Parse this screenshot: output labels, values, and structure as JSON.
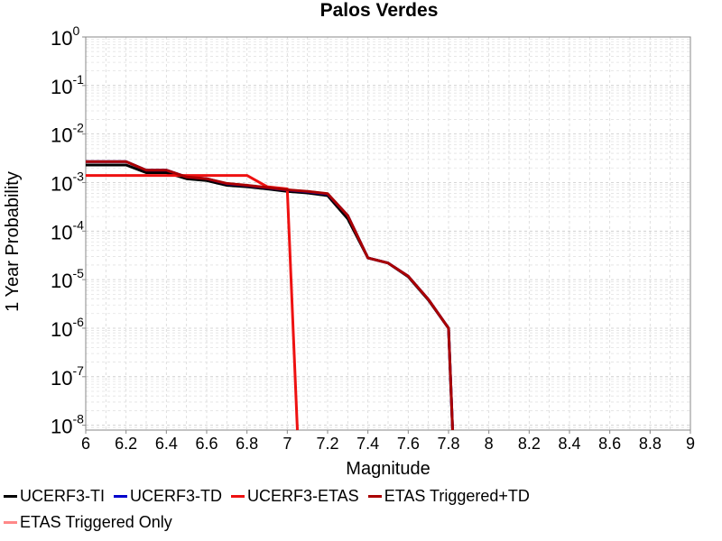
{
  "chart_data": {
    "type": "line",
    "title": "Palos Verdes",
    "xlabel": "Magnitude",
    "ylabel": "1 Year Probability",
    "xlim": [
      6,
      9
    ],
    "ylim_log10": [
      -8.1,
      0
    ],
    "y_scale": "log",
    "grid": true,
    "legend_placement": "bottom",
    "x_ticks": [
      "6",
      "6.2",
      "6.4",
      "6.6",
      "6.8",
      "7",
      "7.2",
      "7.4",
      "7.6",
      "7.8",
      "8",
      "8.2",
      "8.4",
      "8.6",
      "8.8",
      "9"
    ],
    "y_ticks": [
      {
        "base": "10",
        "exp": "0",
        "log": 0
      },
      {
        "base": "10",
        "exp": "-1",
        "log": -1
      },
      {
        "base": "10",
        "exp": "-2",
        "log": -2
      },
      {
        "base": "10",
        "exp": "-3",
        "log": -3
      },
      {
        "base": "10",
        "exp": "-4",
        "log": -4
      },
      {
        "base": "10",
        "exp": "-5",
        "log": -5
      },
      {
        "base": "10",
        "exp": "-6",
        "log": -6
      },
      {
        "base": "10",
        "exp": "-7",
        "log": -7
      },
      {
        "base": "10",
        "exp": "-8",
        "log": -8
      }
    ],
    "series": [
      {
        "name": "UCERF3-TI",
        "color": "#000000",
        "x": [
          6.0,
          6.2,
          6.3,
          6.4,
          6.5,
          6.6,
          6.7,
          6.8,
          6.9,
          7.0,
          7.1,
          7.2,
          7.3,
          7.4,
          7.5,
          7.6,
          7.7,
          7.8,
          7.82
        ],
        "y": [
          0.0023,
          0.0023,
          0.0016,
          0.0016,
          0.0012,
          0.0011,
          0.00088,
          0.00082,
          0.00074,
          0.00066,
          0.00061,
          0.00054,
          0.00018,
          2.8e-05,
          2.2e-05,
          1.15e-05,
          3.8e-06,
          1e-06,
          6e-09
        ]
      },
      {
        "name": "UCERF3-TD",
        "color": "#0000cc",
        "x": [
          6.0,
          6.2,
          6.3,
          6.4,
          6.5,
          6.6,
          6.7,
          6.8,
          6.9,
          7.0,
          7.1,
          7.2,
          7.3,
          7.4,
          7.5,
          7.6,
          7.7,
          7.8,
          7.82
        ],
        "y": [
          0.0027,
          0.0027,
          0.0018,
          0.0018,
          0.0013,
          0.0012,
          0.00095,
          0.00087,
          0.00078,
          0.0007,
          0.00065,
          0.00058,
          0.00021,
          2.8e-05,
          2.2e-05,
          1.18e-05,
          3.9e-06,
          1e-06,
          6e-09
        ]
      },
      {
        "name": "UCERF3-ETAS",
        "color": "#ee1111",
        "x": [
          6.0,
          6.4,
          6.5,
          6.8,
          6.9,
          7.0,
          7.05
        ],
        "y": [
          0.0014,
          0.0014,
          0.0014,
          0.0014,
          0.00082,
          0.00074,
          6e-09
        ]
      },
      {
        "name": "ETAS Triggered+TD",
        "color": "#aa0000",
        "x": [
          6.0,
          6.2,
          6.3,
          6.4,
          6.5,
          6.6,
          6.7,
          6.8,
          6.9,
          7.0,
          7.1,
          7.2,
          7.3,
          7.4,
          7.5,
          7.6,
          7.7,
          7.8,
          7.82
        ],
        "y": [
          0.0027,
          0.0027,
          0.0018,
          0.0018,
          0.0013,
          0.0012,
          0.00096,
          0.00088,
          0.00079,
          0.00071,
          0.00066,
          0.00059,
          0.00021,
          2.8e-05,
          2.2e-05,
          1.18e-05,
          3.9e-06,
          1e-06,
          6e-09
        ]
      },
      {
        "name": "ETAS Triggered Only",
        "color": "#ff8888",
        "x": [],
        "y": []
      }
    ]
  }
}
